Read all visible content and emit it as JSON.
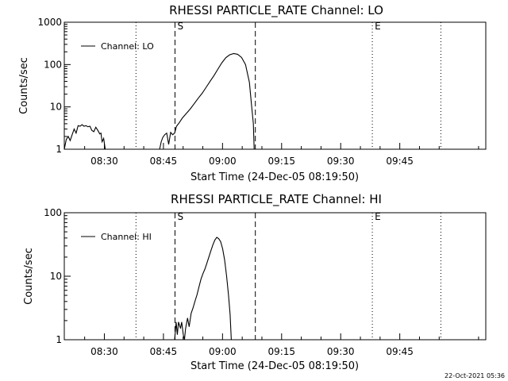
{
  "footer": {
    "timestamp": "22-Oct-2021 05:36"
  },
  "chart_data": [
    {
      "type": "line",
      "title": "RHESSI PARTICLE_RATE Channel: LO",
      "xlabel": "Start Time (24-Dec-05 08:19:50)",
      "ylabel": "Counts/sec",
      "yscale": "log",
      "ylim": [
        1,
        1000
      ],
      "xlim_minutes": [
        0,
        107
      ],
      "yticks": [
        "1",
        "10",
        "100",
        "1000"
      ],
      "xticks": [
        {
          "label": "08:30",
          "min": 10.17
        },
        {
          "label": "08:45",
          "min": 25.17
        },
        {
          "label": "09:00",
          "min": 40.17
        },
        {
          "label": "09:15",
          "min": 55.17
        },
        {
          "label": "09:30",
          "min": 70.17
        },
        {
          "label": "09:45",
          "min": 85.17
        }
      ],
      "legend": {
        "position": "top-left",
        "entries": [
          "Channel: LO"
        ]
      },
      "markers": [
        {
          "label": "",
          "min": 18.2,
          "style": "dotted"
        },
        {
          "label": "S",
          "min": 28.1,
          "style": "dashed"
        },
        {
          "label": "",
          "min": 48.5,
          "style": "dashed"
        },
        {
          "label": "E",
          "min": 78.2,
          "style": "dotted"
        },
        {
          "label": "",
          "min": 95.6,
          "style": "dotted"
        }
      ],
      "series": [
        {
          "name": "Channel: LO",
          "segments": [
            [
              [
                0,
                1
              ],
              [
                0.5,
                1.7
              ],
              [
                1,
                2
              ],
              [
                1.5,
                1.6
              ],
              [
                2,
                2.2
              ],
              [
                2.5,
                3
              ],
              [
                3,
                2.4
              ],
              [
                3.5,
                3.6
              ],
              [
                4,
                3.5
              ],
              [
                4.5,
                3.8
              ],
              [
                5,
                3.5
              ],
              [
                5.5,
                3.6
              ],
              [
                6,
                3.4
              ],
              [
                6.5,
                3.5
              ],
              [
                7,
                2.8
              ],
              [
                7.5,
                2.6
              ],
              [
                8,
                3.3
              ],
              [
                8.5,
                2.8
              ],
              [
                9,
                2.3
              ],
              [
                9.3,
                2.4
              ],
              [
                9.6,
                1.5
              ],
              [
                10,
                1.8
              ],
              [
                10.4,
                1
              ]
            ],
            [
              [
                24.2,
                1
              ],
              [
                24.6,
                1.5
              ],
              [
                25,
                1.9
              ],
              [
                25.5,
                2.2
              ],
              [
                26,
                2.4
              ],
              [
                26.5,
                1.3
              ],
              [
                27,
                2.5
              ],
              [
                27.5,
                2.2
              ],
              [
                28,
                2.4
              ],
              [
                28.5,
                3.5
              ],
              [
                29,
                4
              ],
              [
                29.5,
                4.7
              ],
              [
                30,
                5.5
              ],
              [
                31,
                7
              ],
              [
                32,
                9
              ],
              [
                33,
                12
              ],
              [
                34,
                16
              ],
              [
                35,
                21
              ],
              [
                36,
                29
              ],
              [
                37,
                40
              ],
              [
                38,
                55
              ],
              [
                39,
                78
              ],
              [
                40,
                110
              ],
              [
                41,
                145
              ],
              [
                42,
                170
              ],
              [
                43,
                182
              ],
              [
                44,
                175
              ],
              [
                45,
                148
              ],
              [
                46,
                100
              ],
              [
                47,
                38
              ],
              [
                47.5,
                12
              ],
              [
                48,
                4
              ],
              [
                48.2,
                1
              ]
            ]
          ]
        }
      ]
    },
    {
      "type": "line",
      "title": "RHESSI PARTICLE_RATE Channel: HI",
      "xlabel": "Start Time (24-Dec-05 08:19:50)",
      "ylabel": "Counts/sec",
      "yscale": "log",
      "ylim": [
        1,
        100
      ],
      "xlim_minutes": [
        0,
        107
      ],
      "yticks": [
        "1",
        "10",
        "100"
      ],
      "xticks": [
        {
          "label": "08:30",
          "min": 10.17
        },
        {
          "label": "08:45",
          "min": 25.17
        },
        {
          "label": "09:00",
          "min": 40.17
        },
        {
          "label": "09:15",
          "min": 55.17
        },
        {
          "label": "09:30",
          "min": 70.17
        },
        {
          "label": "09:45",
          "min": 85.17
        }
      ],
      "legend": {
        "position": "top-left",
        "entries": [
          "Channel: HI"
        ]
      },
      "markers": [
        {
          "label": "",
          "min": 18.2,
          "style": "dotted"
        },
        {
          "label": "S",
          "min": 28.1,
          "style": "dashed"
        },
        {
          "label": "",
          "min": 48.5,
          "style": "dashed"
        },
        {
          "label": "E",
          "min": 78.2,
          "style": "dotted"
        },
        {
          "label": "",
          "min": 95.6,
          "style": "dotted"
        }
      ],
      "series": [
        {
          "name": "Channel: HI",
          "segments": [
            [
              [
                28,
                1
              ],
              [
                28.4,
                1.9
              ],
              [
                28.7,
                1.2
              ],
              [
                29,
                1.9
              ],
              [
                29.5,
                1.5
              ],
              [
                29.8,
                1.9
              ],
              [
                30.2,
                1.2
              ],
              [
                30.5,
                1
              ],
              [
                30.8,
                1.5
              ],
              [
                31.3,
                2.2
              ],
              [
                31.7,
                1.6
              ],
              [
                32.2,
                2.6
              ],
              [
                32.7,
                3.2
              ],
              [
                33.2,
                4.1
              ],
              [
                33.7,
                5.1
              ],
              [
                34.2,
                6.8
              ],
              [
                34.7,
                9
              ],
              [
                35.2,
                11
              ],
              [
                35.7,
                13
              ],
              [
                36.2,
                16
              ],
              [
                36.7,
                20
              ],
              [
                37.2,
                25
              ],
              [
                37.7,
                31
              ],
              [
                38.2,
                37
              ],
              [
                38.7,
                41
              ],
              [
                39.2,
                39
              ],
              [
                39.7,
                35
              ],
              [
                40.2,
                27
              ],
              [
                40.7,
                18
              ],
              [
                41.2,
                10
              ],
              [
                41.7,
                5
              ],
              [
                42.1,
                2.5
              ],
              [
                42.4,
                1
              ]
            ]
          ]
        }
      ]
    }
  ]
}
